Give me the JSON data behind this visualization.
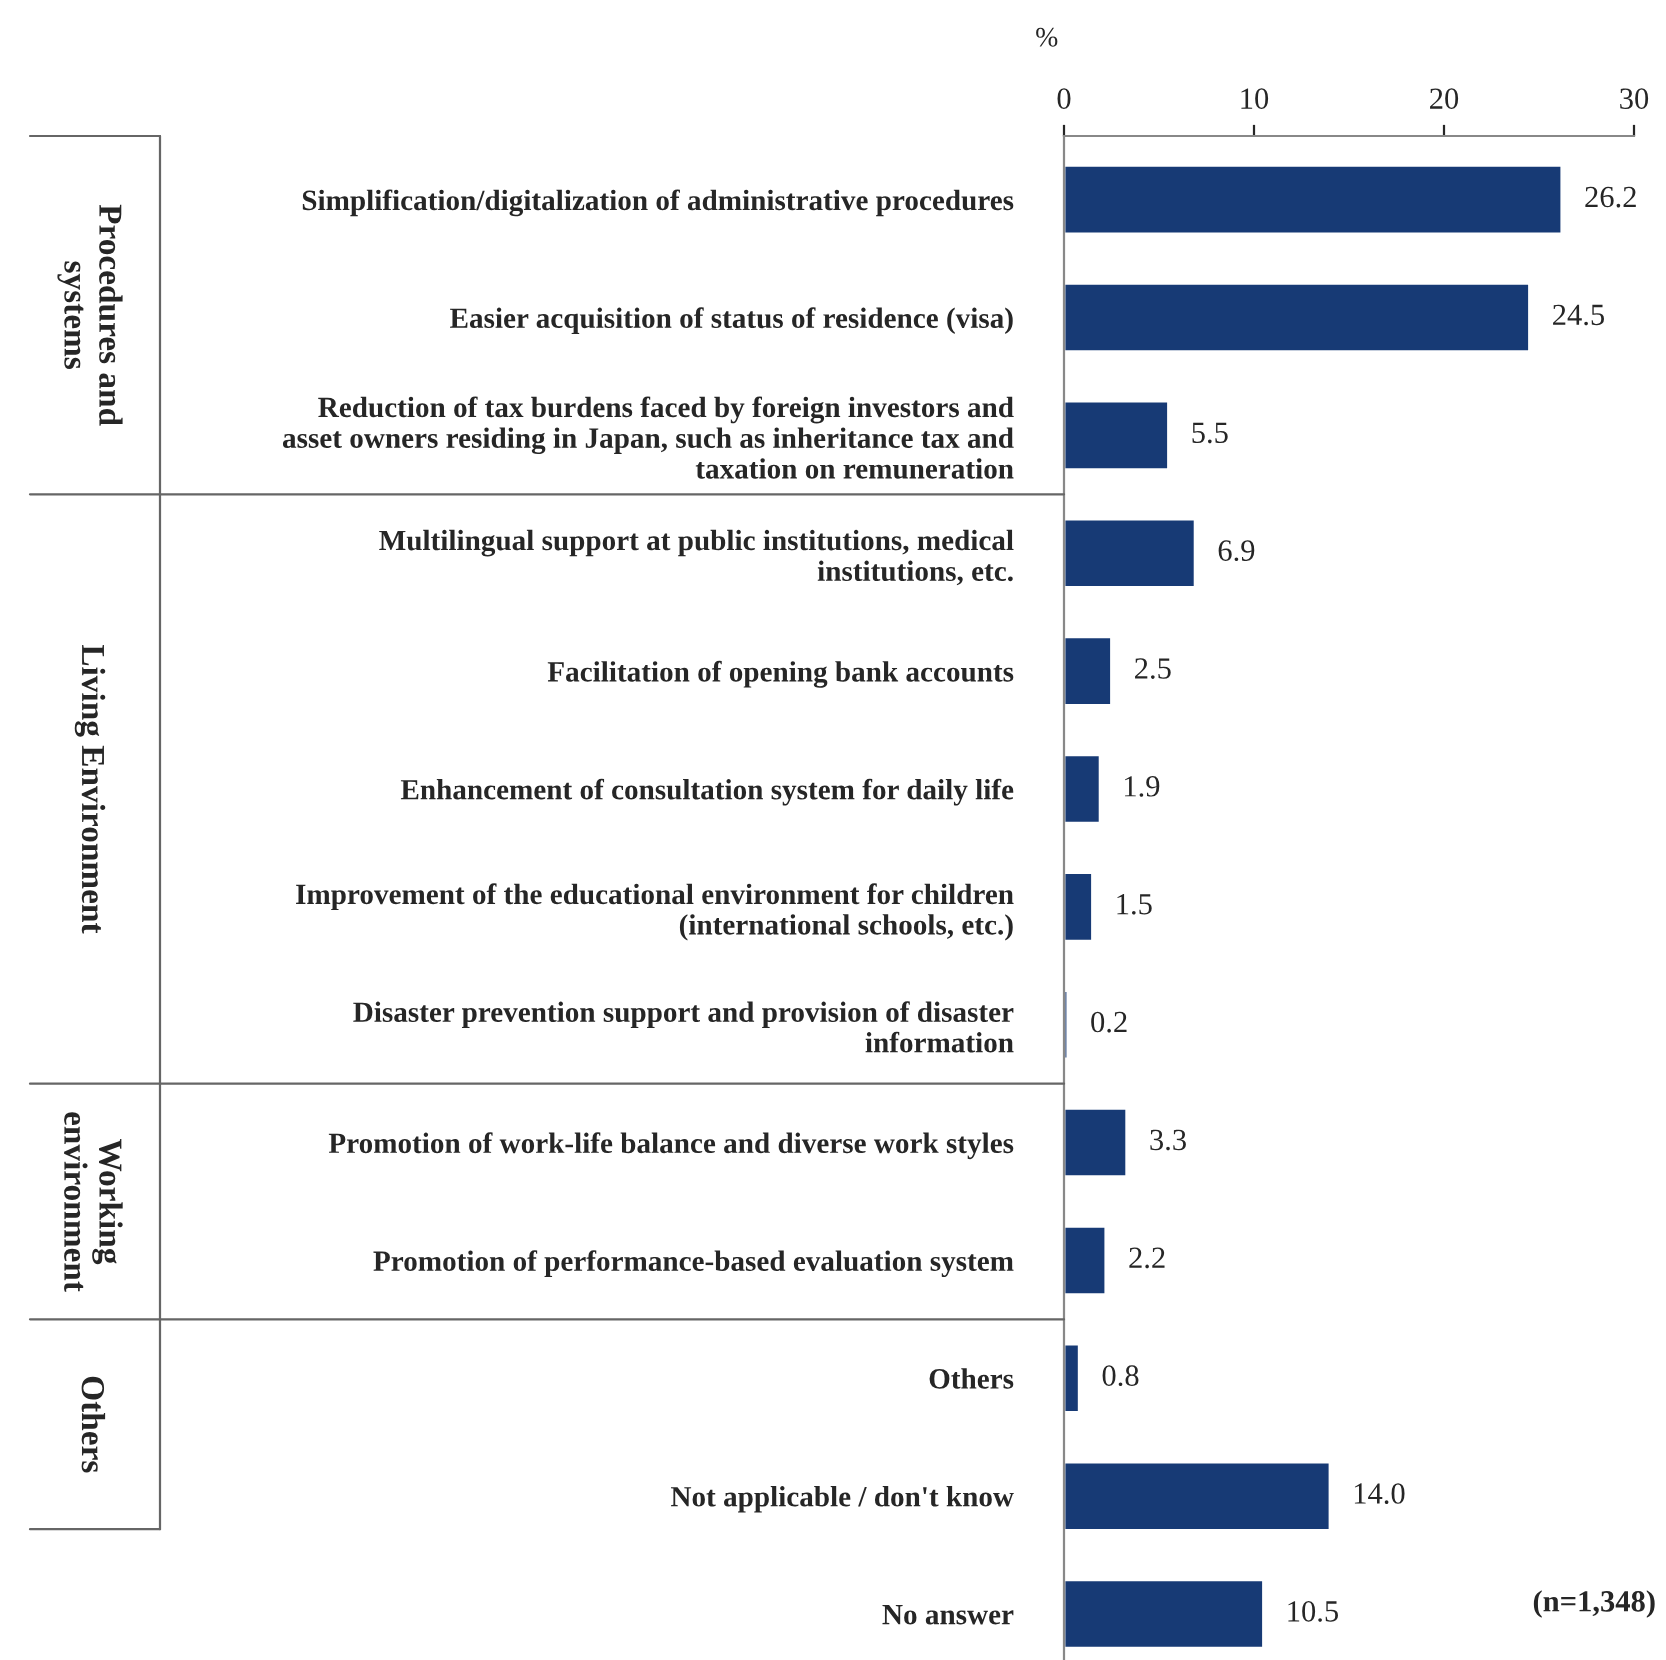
{
  "chart_data": {
    "type": "bar",
    "orientation": "horizontal",
    "xlabel": "%",
    "categories": [
      "Simplification/digitalization of administrative procedures",
      "Easier acquisition of status of residence (visa)",
      "Reduction of tax burdens faced by foreign investors and\nasset owners residing in Japan, such as inheritance tax and\ntaxation on remuneration",
      "Multilingual support at public institutions, medical\ninstitutions, etc.",
      "Facilitation of opening bank accounts",
      "Enhancement of consultation system for daily life",
      "Improvement of the educational environment for children\n(international schools, etc.)",
      "Disaster prevention support and provision of disaster\ninformation",
      "Promotion of work-life balance and diverse work styles",
      "Promotion of performance-based evaluation system",
      "Others",
      "Not applicable / don't know",
      "No answer"
    ],
    "values": [
      26.2,
      24.5,
      5.5,
      6.9,
      2.5,
      1.9,
      1.5,
      0.2,
      3.3,
      2.2,
      0.8,
      14.0,
      10.5
    ],
    "color": "#173a75",
    "xlim": [
      0,
      30
    ],
    "xticks": [
      0,
      10,
      20,
      30
    ],
    "value_labels": [
      "26.2",
      "24.5",
      "5.5",
      "6.9",
      "2.5",
      "1.9",
      "1.5",
      "0.2",
      "3.3",
      "2.2",
      "0.8",
      "14.0",
      "10.5"
    ],
    "grid": false,
    "legend": false,
    "annotations": [
      "Procedures and\nsystems",
      "Living Environment",
      "Working\nenvironment",
      "Others",
      "(n=1,348)"
    ]
  }
}
